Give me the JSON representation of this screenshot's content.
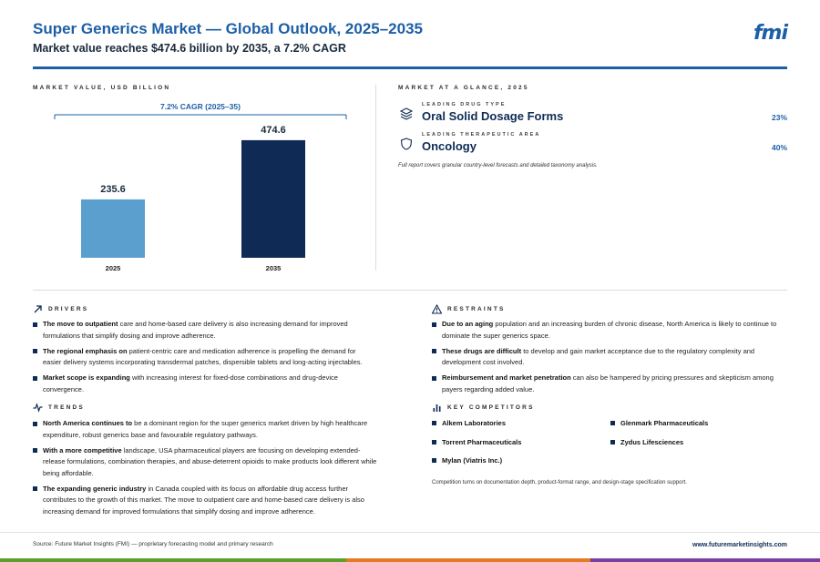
{
  "header": {
    "title": "Super Generics Market — Global Outlook, 2025–2035",
    "subtitle": "Market value reaches $474.6 billion by 2035, a 7.2% CAGR",
    "logo_text": "fmi"
  },
  "market_value": {
    "section_label": "MARKET VALUE, USD BILLION"
  },
  "chart_data": {
    "type": "bar",
    "categories": [
      "2025",
      "2035"
    ],
    "values": [
      235.6,
      474.6
    ],
    "value_labels": [
      "235.6",
      "474.6"
    ],
    "bar_colors": [
      "#5b9fcf",
      "#0f2b55"
    ],
    "annotation": "7.2% CAGR (2025–35)",
    "annotation_color": "#1d5fa6",
    "ylim": [
      0,
      500
    ],
    "grid": false
  },
  "glance": {
    "section_label": "MARKET AT A GLANCE, 2025",
    "rows": [
      {
        "kicker": "LEADING DRUG TYPE",
        "value": "Oral Solid Dosage Forms",
        "share": "23%",
        "icon": "layers-icon"
      },
      {
        "kicker": "LEADING THERAPEUTIC AREA",
        "value": "Oncology",
        "share": "40%",
        "icon": "shield-icon"
      }
    ],
    "note": "Full report covers granular country-level forecasts and detailed taxonomy analysis."
  },
  "drivers": {
    "label": "DRIVERS",
    "icon": "arrow-up-right-icon",
    "items": [
      {
        "lead": "The move to outpatient",
        "text": " care and home-based care delivery is also increasing demand for improved formulations that simplify dosing and improve adherence."
      },
      {
        "lead": "The regional emphasis on",
        "text": " patient-centric care and medication adherence is propelling the demand for easier delivery systems incorporating transdermal patches, dispersible tablets and long-acting injectables."
      },
      {
        "lead": "Market scope is expanding",
        "text": " with increasing interest for fixed-dose combinations and drug-device convergence."
      }
    ]
  },
  "restraints": {
    "label": "RESTRAINTS",
    "icon": "warning-icon",
    "items": [
      {
        "lead": "Due to an aging",
        "text": " population and an increasing burden of chronic disease, North America is likely to continue to dominate the super generics space."
      },
      {
        "lead": "These drugs are difficult",
        "text": " to develop and gain market acceptance due to the regulatory complexity and development cost involved."
      },
      {
        "lead": "Reimbursement and market penetration",
        "text": " can also be hampered by pricing pressures and skepticism among payers regarding added value."
      }
    ]
  },
  "trends": {
    "label": "TRENDS",
    "icon": "pulse-icon",
    "items": [
      {
        "lead": "North America continues to",
        "text": " be a dominant region for the super generics market driven by high healthcare expenditure, robust generics base and favourable regulatory pathways."
      },
      {
        "lead": "With a more competitive",
        "text": " landscape, USA pharmaceutical players are focusing on developing extended-release formulations, combination therapies, and abuse-deterrent opioids to make products look different while being affordable."
      },
      {
        "lead": "The expanding generic industry",
        "text": " in Canada coupled with its focus on affordable drug access further contributes to the growth of this market. The move to outpatient care and home-based care delivery is also increasing demand for improved formulations that simplify dosing and improve adherence."
      }
    ]
  },
  "competitors": {
    "label": "KEY COMPETITORS",
    "icon": "bar-chart-icon",
    "items": [
      "Alkem Laboratories",
      "Glenmark Pharmaceuticals",
      "Torrent Pharmaceuticals",
      "Zydus Lifesciences",
      "Mylan (Viatris Inc.)"
    ],
    "note": "Competition turns on documentation depth, product-format range, and design-stage specification support."
  },
  "footer": {
    "source": "Source: Future Market Insights (FMI) — proprietary forecasting model and primary research",
    "website": "www.futuremarketinsights.com",
    "stripe_colors": [
      "#5aa02c",
      "#e37b22",
      "#7b3fa0"
    ]
  }
}
